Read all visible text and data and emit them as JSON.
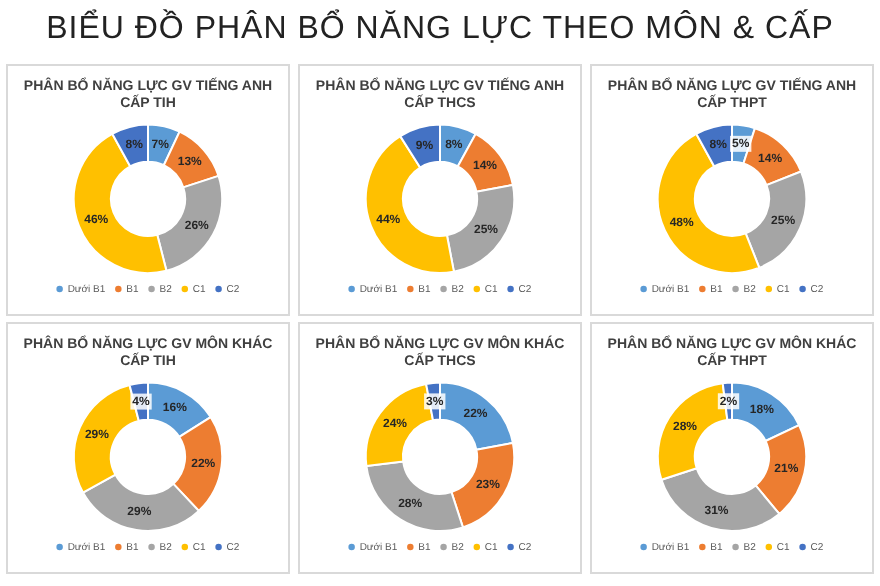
{
  "chart_data": [
    {
      "type": "other",
      "title": "BIỂU ĐỒ PHÂN BỔ NĂNG LỰC THEO MÔN & CẤP"
    },
    {
      "type": "donut",
      "title": "PHÂN BỔ NĂNG LỰC GV TIẾNG ANH\nCẤP TIH",
      "categories": [
        "Dưới B1",
        "B1",
        "B2",
        "C1",
        "C2"
      ],
      "values": [
        7,
        13,
        26,
        46,
        8
      ],
      "value_labels": [
        "7%",
        "13%",
        "26%",
        "46%",
        "8%"
      ],
      "colors": [
        "#5b9bd5",
        "#ed7d31",
        "#a5a5a5",
        "#ffc000",
        "#4472c4"
      ],
      "legend": "bottom"
    },
    {
      "type": "donut",
      "title": "PHÂN BỔ NĂNG LỰC GV TIẾNG ANH\nCẤP THCS",
      "categories": [
        "Dưới B1",
        "B1",
        "B2",
        "C1",
        "C2"
      ],
      "values": [
        8,
        14,
        25,
        44,
        9
      ],
      "value_labels": [
        "8%",
        "14%",
        "25%",
        "44%",
        "9%"
      ],
      "colors": [
        "#5b9bd5",
        "#ed7d31",
        "#a5a5a5",
        "#ffc000",
        "#4472c4"
      ],
      "legend": "bottom"
    },
    {
      "type": "donut",
      "title": "PHÂN BỔ NĂNG LỰC GV TIẾNG ANH\nCẤP THPT",
      "categories": [
        "Dưới B1",
        "B1",
        "B2",
        "C1",
        "C2"
      ],
      "values": [
        5,
        14,
        25,
        48,
        8
      ],
      "value_labels": [
        "5%",
        "14%",
        "25%",
        "48%",
        "8%"
      ],
      "colors": [
        "#5b9bd5",
        "#ed7d31",
        "#a5a5a5",
        "#ffc000",
        "#4472c4"
      ],
      "legend": "bottom"
    },
    {
      "type": "donut",
      "title": "PHÂN BỔ NĂNG LỰC GV MÔN KHÁC\nCẤP TIH",
      "categories": [
        "Dưới B1",
        "B1",
        "B2",
        "C1",
        "C2"
      ],
      "values": [
        16,
        22,
        29,
        29,
        4
      ],
      "value_labels": [
        "16%",
        "22%",
        "29%",
        "29%",
        "4%"
      ],
      "colors": [
        "#5b9bd5",
        "#ed7d31",
        "#a5a5a5",
        "#ffc000",
        "#4472c4"
      ],
      "legend": "bottom"
    },
    {
      "type": "donut",
      "title": "PHÂN BỔ NĂNG LỰC GV MÔN KHÁC\nCẤP THCS",
      "categories": [
        "Dưới B1",
        "B1",
        "B2",
        "C1",
        "C2"
      ],
      "values": [
        22,
        23,
        28,
        24,
        3
      ],
      "value_labels": [
        "22%",
        "23%",
        "28%",
        "24%",
        "3%"
      ],
      "colors": [
        "#5b9bd5",
        "#ed7d31",
        "#a5a5a5",
        "#ffc000",
        "#4472c4"
      ],
      "legend": "bottom"
    },
    {
      "type": "donut",
      "title": "PHÂN BỔ NĂNG LỰC GV MÔN KHÁC\nCẤP THPT",
      "categories": [
        "Dưới B1",
        "B1",
        "B2",
        "C1",
        "C2"
      ],
      "values": [
        18,
        21,
        31,
        28,
        2
      ],
      "value_labels": [
        "18%",
        "21%",
        "31%",
        "28%",
        "2%"
      ],
      "colors": [
        "#5b9bd5",
        "#ed7d31",
        "#a5a5a5",
        "#ffc000",
        "#4472c4"
      ],
      "legend": "bottom"
    }
  ]
}
